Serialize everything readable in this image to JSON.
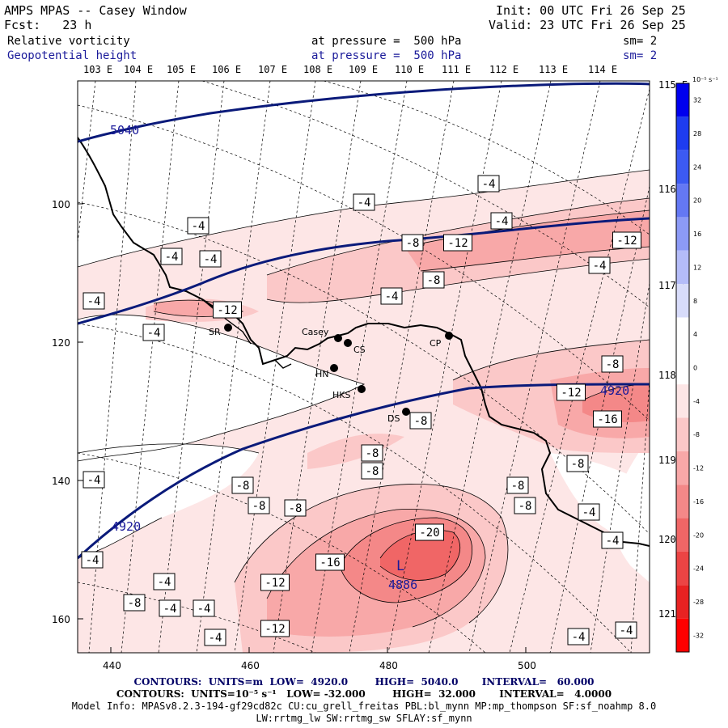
{
  "header": {
    "model": "AMPS MPAS -- Casey Window",
    "forecast": "Fcst:   23 h",
    "init": "Init: 00 UTC Fri 26 Sep 25",
    "valid": "Valid: 23 UTC Fri 26 Sep 25",
    "field1": "Relative vorticity",
    "field1_level": "at pressure =  500 hPa",
    "field1_sm": "sm= 2",
    "field2": "Geopotential height",
    "field2_level": "at pressure =  500 hPa",
    "field2_sm": "sm= 2"
  },
  "top_lon_labels": [
    "103 E",
    "104 E",
    "105 E",
    "106 E",
    "107 E",
    "108 E",
    "109 E",
    "110 E",
    "111 E",
    "112 E",
    "113 E",
    "114 E"
  ],
  "right_lon_labels": [
    "115 E",
    "116 E",
    "117 E",
    "118 E",
    "119 E",
    "120 E",
    "121 E"
  ],
  "y_ticks": [
    "100",
    "120",
    "140",
    "160"
  ],
  "x_ticks": [
    "440",
    "460",
    "480",
    "500"
  ],
  "stations": [
    {
      "name": "SR"
    },
    {
      "name": "Casey"
    },
    {
      "name": "CS"
    },
    {
      "name": "CP"
    },
    {
      "name": "HN"
    },
    {
      "name": "HKS"
    },
    {
      "name": "DS"
    }
  ],
  "height_labels": [
    "5040",
    "4920",
    "4920",
    "4886"
  ],
  "low_marker": "L",
  "vort_labels": [
    "-4",
    "-4",
    "-4",
    "-4",
    "-4",
    "-4",
    "-4",
    "-4",
    "-4",
    "-4",
    "-4",
    "-4",
    "-4",
    "-4",
    "-4",
    "-4",
    "-4",
    "-4",
    "-4",
    "-4",
    "-8",
    "-8",
    "-8",
    "-8",
    "-8",
    "-8",
    "-8",
    "-8",
    "-8",
    "-8",
    "-8",
    "-8",
    "-8",
    "-12",
    "-12",
    "-12",
    "-12",
    "-12",
    "-12",
    "-16",
    "-16",
    "-20"
  ],
  "colorbar": {
    "unit": "10⁻⁵ s⁻¹",
    "levels": [
      "32",
      "28",
      "24",
      "20",
      "16",
      "12",
      "8",
      "4",
      "0",
      "-4",
      "-8",
      "-12",
      "-16",
      "-20",
      "-24",
      "-28",
      "-32"
    ],
    "colors": [
      "#0000ee",
      "#1e3cf0",
      "#3c5af2",
      "#6478f4",
      "#8c9af6",
      "#b4bcf8",
      "#d8dcfa",
      "#ffffff",
      "#ffffff",
      "#fde6e6",
      "#fbc8c8",
      "#f8a8a8",
      "#f48888",
      "#f06666",
      "#ec4444",
      "#e82222",
      "#ff0000"
    ]
  },
  "footer": {
    "line1": "CONTOURS:  UNITS=m  LOW=  4920.0        HIGH=  5040.0       INTERVAL=   60.000",
    "line2": "CONTOURS:  UNITS=10⁻⁵ s⁻¹   LOW= -32.000        HIGH=  32.000       INTERVAL=   4.0000",
    "line3": "Model Info: MPASv8.2.3-194-gf29cd82c CU:cu_grell_freitas PBL:bl_mynn MP:mp_thompson SF:sf_noahmp 8.0",
    "line4": "LW:rrtmg_lw SW:rrtmg_sw SFLAY:sf_mynn"
  }
}
